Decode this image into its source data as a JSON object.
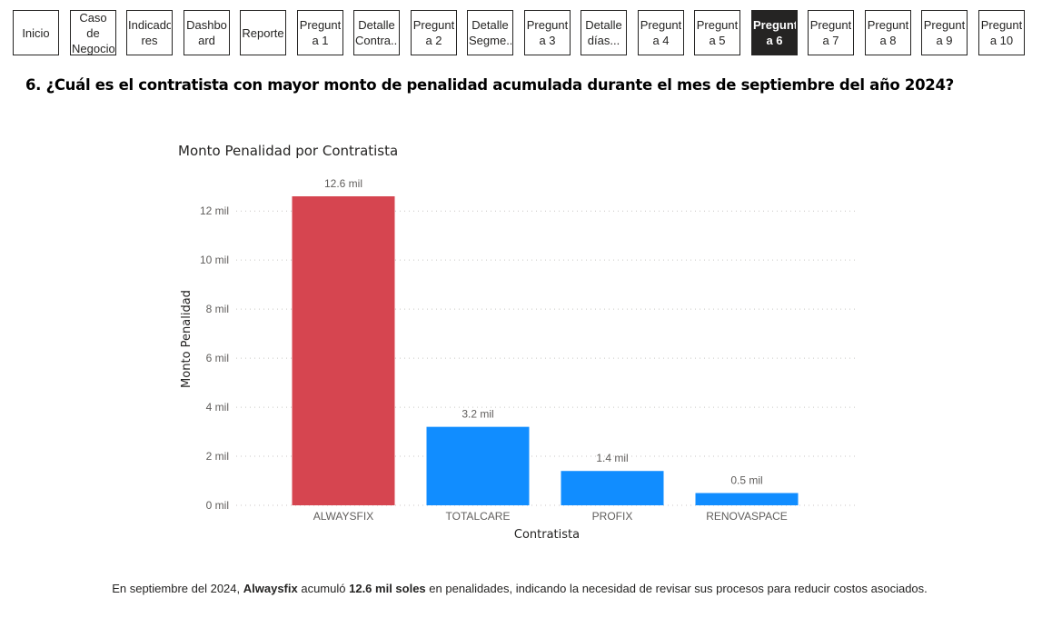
{
  "nav": {
    "buttons": [
      {
        "label": "Inicio",
        "active": false
      },
      {
        "label": "Caso de\nNegocio",
        "active": false
      },
      {
        "label": "Indicado\nres",
        "active": false
      },
      {
        "label": "Dashbo\nard",
        "active": false
      },
      {
        "label": "Reporte",
        "active": false
      },
      {
        "label": "Pregunt\na 1",
        "active": false
      },
      {
        "label": "Detalle\nContra...",
        "active": false
      },
      {
        "label": "Pregunt\na 2",
        "active": false
      },
      {
        "label": "Detalle\nSegme...",
        "active": false
      },
      {
        "label": "Pregunt\na 3",
        "active": false
      },
      {
        "label": "Detalle\ndías...",
        "active": false
      },
      {
        "label": "Pregunt\na 4",
        "active": false
      },
      {
        "label": "Pregunt\na 5",
        "active": false
      },
      {
        "label": "Pregunt\na 6",
        "active": true
      },
      {
        "label": "Pregunt\na 7",
        "active": false
      },
      {
        "label": "Pregunt\na 8",
        "active": false
      },
      {
        "label": "Pregunt\na 9",
        "active": false
      },
      {
        "label": "Pregunt\na 10",
        "active": false
      }
    ]
  },
  "question": {
    "title": "6. ¿Cuál es el contratista con mayor monto de penalidad acumulada durante el mes de septiembre del año 2024?"
  },
  "chart_data": {
    "type": "bar",
    "title": "Monto Penalidad por Contratista",
    "xlabel": "Contratista",
    "ylabel": "Monto Penalidad",
    "categories": [
      "ALWAYSFIX",
      "TOTALCARE",
      "PROFIX",
      "RENOVASPACE"
    ],
    "values": [
      12600,
      3200,
      1400,
      500
    ],
    "data_labels": [
      "12.6 mil",
      "3.2 mil",
      "1.4 mil",
      "0.5 mil"
    ],
    "y_ticks": [
      {
        "value": 0,
        "label": "0 mil"
      },
      {
        "value": 2000,
        "label": "2 mil"
      },
      {
        "value": 4000,
        "label": "4 mil"
      },
      {
        "value": 6000,
        "label": "6 mil"
      },
      {
        "value": 8000,
        "label": "8 mil"
      },
      {
        "value": 10000,
        "label": "10 mil"
      },
      {
        "value": 12000,
        "label": "12 mil"
      }
    ],
    "ylim": [
      0,
      12600
    ],
    "grid": true,
    "colors": {
      "highlight": "#D64550",
      "default": "#118DFF"
    },
    "highlight_index": 0
  },
  "insight": {
    "part1": "En septiembre del 2024, ",
    "company": "Alwaysfix",
    "part2": " acumuló ",
    "amount": "12.6 mil soles",
    "part3": " en penalidades, indicando la necesidad de revisar sus procesos para reducir costos asociados."
  }
}
